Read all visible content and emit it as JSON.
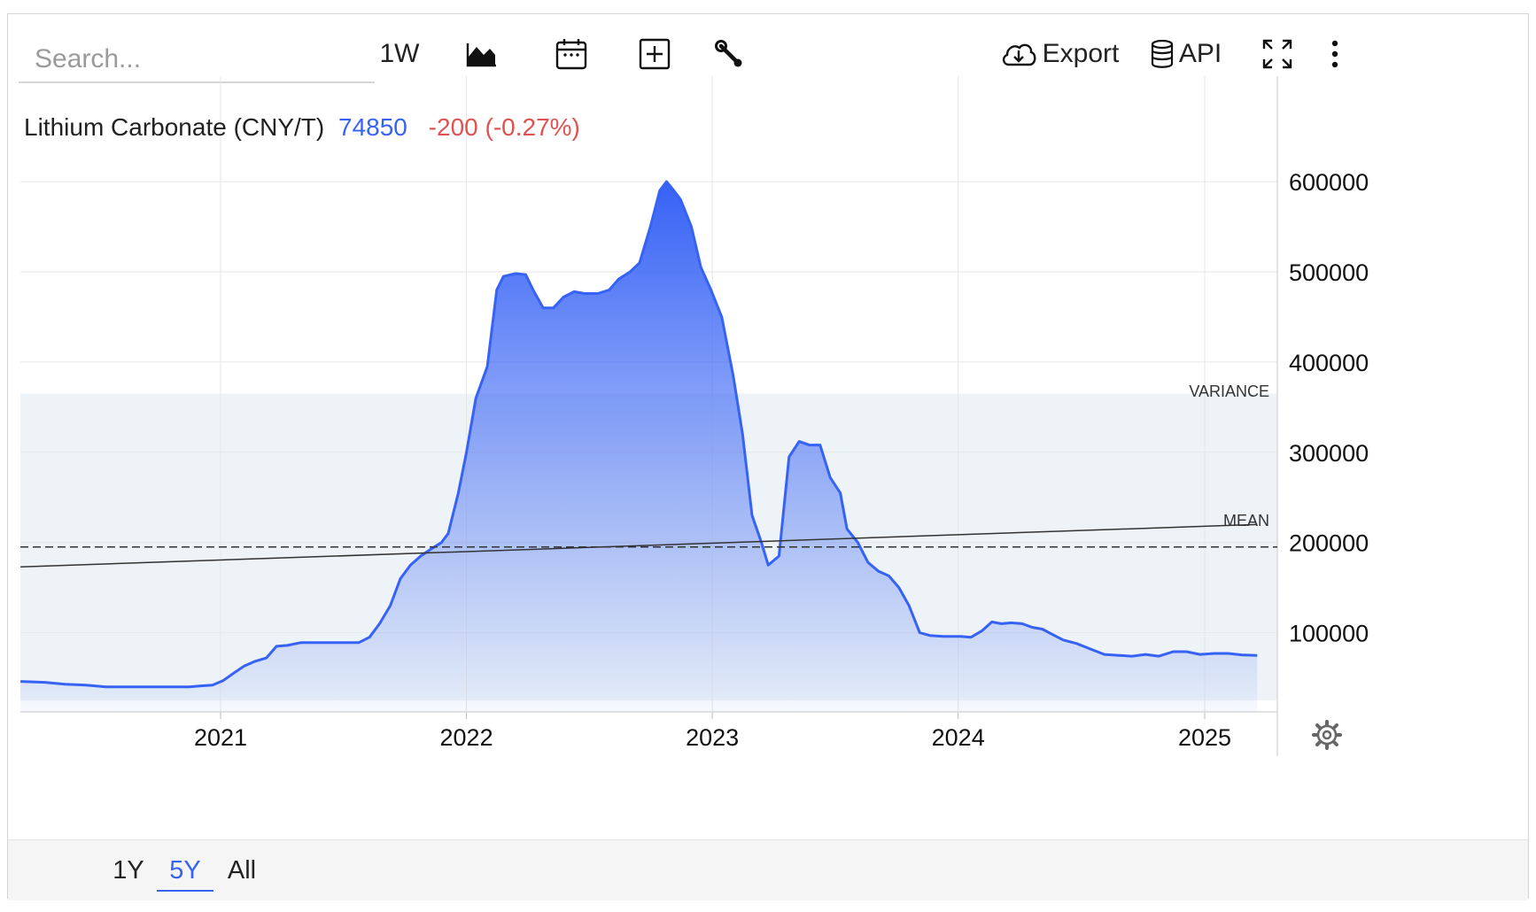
{
  "toolbar": {
    "search_placeholder": "Search...",
    "interval_label": "1W",
    "export_label": "Export",
    "api_label": "API",
    "icons": [
      "chart-type-icon",
      "calendar-icon",
      "add-indicator-icon",
      "wrench-icon",
      "cloud-download-icon",
      "database-icon",
      "fullscreen-icon",
      "more-vert-icon"
    ]
  },
  "header": {
    "name": "Lithium Carbonate (CNY/T)",
    "price": "74850",
    "change": "-200 (-0.27%)",
    "price_color": "#3662f5",
    "change_color": "#e05252"
  },
  "overlays": {
    "variance_label": "VARIANCE",
    "mean_label": "MEAN"
  },
  "range": {
    "options": [
      "1Y",
      "5Y",
      "All"
    ],
    "selected": "5Y"
  },
  "colors": {
    "series": "#3662f5",
    "variance_band": "#edf3f7",
    "grid": "#e6e6e6"
  },
  "chart_data": {
    "type": "area",
    "title": "Lithium Carbonate (CNY/T)",
    "ylim": [
      0,
      650000
    ],
    "yticks": [
      100000,
      200000,
      300000,
      400000,
      500000,
      600000
    ],
    "ytick_labels": [
      "100000",
      "200000",
      "300000",
      "400000",
      "500000",
      "600000"
    ],
    "xticks": [
      "2021",
      "2022",
      "2023",
      "2024",
      "2025"
    ],
    "xtick_dates": [
      "2021-01-01",
      "2022-01-01",
      "2023-01-01",
      "2024-01-01",
      "2025-01-01"
    ],
    "grid": true,
    "legend": "none",
    "mean": 195000,
    "variance_range": [
      25000,
      365000
    ],
    "trend_line": {
      "start": [
        "2020-03-10",
        173000
      ],
      "end": [
        "2025-03-20",
        220000
      ]
    },
    "series": [
      {
        "name": "Lithium Carbonate",
        "points": [
          [
            "2020-03-10",
            46000
          ],
          [
            "2020-04-15",
            45000
          ],
          [
            "2020-05-15",
            43000
          ],
          [
            "2020-06-15",
            42000
          ],
          [
            "2020-07-15",
            40000
          ],
          [
            "2020-08-15",
            40000
          ],
          [
            "2020-09-15",
            40000
          ],
          [
            "2020-10-15",
            40000
          ],
          [
            "2020-11-15",
            40000
          ],
          [
            "2020-12-01",
            41000
          ],
          [
            "2020-12-20",
            42000
          ],
          [
            "2021-01-05",
            47000
          ],
          [
            "2021-01-20",
            55000
          ],
          [
            "2021-02-05",
            63000
          ],
          [
            "2021-02-20",
            68000
          ],
          [
            "2021-03-10",
            72000
          ],
          [
            "2021-03-25",
            85000
          ],
          [
            "2021-04-10",
            86000
          ],
          [
            "2021-04-30",
            89000
          ],
          [
            "2021-05-30",
            89000
          ],
          [
            "2021-06-30",
            89000
          ],
          [
            "2021-07-25",
            89000
          ],
          [
            "2021-08-10",
            95000
          ],
          [
            "2021-08-25",
            110000
          ],
          [
            "2021-09-10",
            130000
          ],
          [
            "2021-09-25",
            160000
          ],
          [
            "2021-10-10",
            175000
          ],
          [
            "2021-10-25",
            185000
          ],
          [
            "2021-11-10",
            193000
          ],
          [
            "2021-11-25",
            200000
          ],
          [
            "2021-12-05",
            210000
          ],
          [
            "2021-12-20",
            255000
          ],
          [
            "2022-01-01",
            300000
          ],
          [
            "2022-01-15",
            360000
          ],
          [
            "2022-02-01",
            395000
          ],
          [
            "2022-02-15",
            480000
          ],
          [
            "2022-02-25",
            495000
          ],
          [
            "2022-03-15",
            498000
          ],
          [
            "2022-03-30",
            497000
          ],
          [
            "2022-04-10",
            480000
          ],
          [
            "2022-04-25",
            460000
          ],
          [
            "2022-05-10",
            460000
          ],
          [
            "2022-05-25",
            472000
          ],
          [
            "2022-06-10",
            478000
          ],
          [
            "2022-06-25",
            476000
          ],
          [
            "2022-07-15",
            476000
          ],
          [
            "2022-08-01",
            480000
          ],
          [
            "2022-08-15",
            492000
          ],
          [
            "2022-09-01",
            500000
          ],
          [
            "2022-09-15",
            510000
          ],
          [
            "2022-10-01",
            550000
          ],
          [
            "2022-10-15",
            590000
          ],
          [
            "2022-10-25",
            600000
          ],
          [
            "2022-11-05",
            590000
          ],
          [
            "2022-11-15",
            580000
          ],
          [
            "2022-12-01",
            550000
          ],
          [
            "2022-12-15",
            505000
          ],
          [
            "2022-12-30",
            480000
          ],
          [
            "2023-01-15",
            450000
          ],
          [
            "2023-02-01",
            385000
          ],
          [
            "2023-02-15",
            320000
          ],
          [
            "2023-03-01",
            230000
          ],
          [
            "2023-03-15",
            200000
          ],
          [
            "2023-03-25",
            175000
          ],
          [
            "2023-04-10",
            185000
          ],
          [
            "2023-04-25",
            295000
          ],
          [
            "2023-05-10",
            312000
          ],
          [
            "2023-05-25",
            308000
          ],
          [
            "2023-06-10",
            308000
          ],
          [
            "2023-06-25",
            272000
          ],
          [
            "2023-07-10",
            255000
          ],
          [
            "2023-07-20",
            215000
          ],
          [
            "2023-08-05",
            200000
          ],
          [
            "2023-08-20",
            178000
          ],
          [
            "2023-09-05",
            168000
          ],
          [
            "2023-09-20",
            163000
          ],
          [
            "2023-10-05",
            150000
          ],
          [
            "2023-10-20",
            130000
          ],
          [
            "2023-11-05",
            100000
          ],
          [
            "2023-11-20",
            97000
          ],
          [
            "2023-12-10",
            96000
          ],
          [
            "2024-01-05",
            96000
          ],
          [
            "2024-01-20",
            95000
          ],
          [
            "2024-02-05",
            102000
          ],
          [
            "2024-02-20",
            112000
          ],
          [
            "2024-03-05",
            110000
          ],
          [
            "2024-03-20",
            111000
          ],
          [
            "2024-04-05",
            110000
          ],
          [
            "2024-04-20",
            106000
          ],
          [
            "2024-05-05",
            104000
          ],
          [
            "2024-05-20",
            98000
          ],
          [
            "2024-06-05",
            92000
          ],
          [
            "2024-06-25",
            88000
          ],
          [
            "2024-07-15",
            82000
          ],
          [
            "2024-08-05",
            76000
          ],
          [
            "2024-08-25",
            75000
          ],
          [
            "2024-09-15",
            74000
          ],
          [
            "2024-10-05",
            76000
          ],
          [
            "2024-10-25",
            74000
          ],
          [
            "2024-11-15",
            79000
          ],
          [
            "2024-12-05",
            79000
          ],
          [
            "2024-12-25",
            76000
          ],
          [
            "2025-01-15",
            77000
          ],
          [
            "2025-02-05",
            77000
          ],
          [
            "2025-02-25",
            75500
          ],
          [
            "2025-03-20",
            74850
          ]
        ]
      }
    ]
  }
}
